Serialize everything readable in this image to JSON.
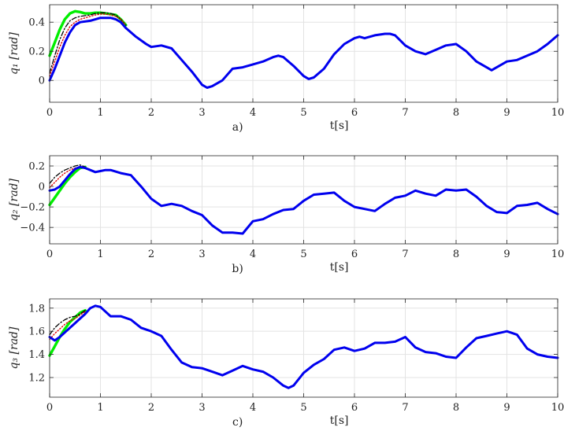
{
  "chart_data": [
    {
      "type": "line",
      "panel_label": "a)",
      "ylabel": "q₁ [rad]",
      "xlabel": "t[s]",
      "xlim": [
        0,
        10
      ],
      "ylim": [
        -0.15,
        0.52
      ],
      "xticks": [
        0,
        1,
        2,
        3,
        4,
        5,
        6,
        7,
        8,
        9,
        10
      ],
      "yticks": [
        0,
        0.2,
        0.4
      ],
      "grid": true,
      "series": [
        {
          "color": "#00ee00",
          "style": "solid",
          "width": 3.4,
          "x": [
            0,
            0.1,
            0.2,
            0.3,
            0.4,
            0.5,
            0.6,
            0.7,
            0.8,
            0.9,
            1.0,
            1.1,
            1.2,
            1.3,
            1.4,
            1.5
          ],
          "y": [
            0.17,
            0.26,
            0.35,
            0.42,
            0.46,
            0.475,
            0.47,
            0.46,
            0.46,
            0.465,
            0.465,
            0.46,
            0.455,
            0.45,
            0.42,
            0.38
          ]
        },
        {
          "color": "#000000",
          "style": "dashdot",
          "width": 1.3,
          "x": [
            0,
            0.1,
            0.2,
            0.3,
            0.4,
            0.5,
            0.6,
            0.7,
            0.8,
            0.9,
            1.0,
            1.1,
            1.2,
            1.3,
            1.4,
            1.5
          ],
          "y": [
            0.05,
            0.17,
            0.28,
            0.36,
            0.41,
            0.43,
            0.44,
            0.445,
            0.45,
            0.46,
            0.465,
            0.465,
            0.46,
            0.45,
            0.42,
            0.38
          ]
        },
        {
          "color": "#dd0000",
          "style": "dotted",
          "width": 1.4,
          "x": [
            0,
            0.1,
            0.2,
            0.3,
            0.4,
            0.5,
            0.6,
            0.7,
            0.8,
            0.9,
            1.0,
            1.1,
            1.2,
            1.3,
            1.4,
            1.5
          ],
          "y": [
            0.03,
            0.13,
            0.23,
            0.31,
            0.37,
            0.4,
            0.42,
            0.43,
            0.44,
            0.45,
            0.455,
            0.455,
            0.45,
            0.44,
            0.42,
            0.38
          ]
        },
        {
          "color": "#0000ee",
          "style": "solid",
          "width": 3.0,
          "x": [
            0,
            0.1,
            0.2,
            0.3,
            0.4,
            0.5,
            0.6,
            0.8,
            1.0,
            1.1,
            1.2,
            1.3,
            1.4,
            1.5,
            1.7,
            1.9,
            2.0,
            2.2,
            2.4,
            2.6,
            2.8,
            3.0,
            3.1,
            3.2,
            3.4,
            3.6,
            3.8,
            4.0,
            4.2,
            4.4,
            4.5,
            4.6,
            4.8,
            5.0,
            5.1,
            5.2,
            5.4,
            5.6,
            5.8,
            6.0,
            6.1,
            6.2,
            6.4,
            6.6,
            6.7,
            6.8,
            7.0,
            7.2,
            7.4,
            7.6,
            7.8,
            8.0,
            8.2,
            8.4,
            8.6,
            8.7,
            8.8,
            9.0,
            9.2,
            9.4,
            9.6,
            9.8,
            10.0
          ],
          "y": [
            0.0,
            0.08,
            0.17,
            0.26,
            0.33,
            0.38,
            0.4,
            0.41,
            0.43,
            0.43,
            0.43,
            0.42,
            0.4,
            0.36,
            0.3,
            0.25,
            0.23,
            0.24,
            0.22,
            0.14,
            0.06,
            -0.03,
            -0.05,
            -0.04,
            0.0,
            0.08,
            0.09,
            0.11,
            0.13,
            0.16,
            0.17,
            0.16,
            0.1,
            0.03,
            0.01,
            0.02,
            0.08,
            0.18,
            0.25,
            0.29,
            0.3,
            0.29,
            0.31,
            0.32,
            0.32,
            0.31,
            0.24,
            0.2,
            0.18,
            0.21,
            0.24,
            0.25,
            0.2,
            0.13,
            0.09,
            0.07,
            0.09,
            0.13,
            0.14,
            0.17,
            0.2,
            0.25,
            0.31
          ]
        }
      ]
    },
    {
      "type": "line",
      "panel_label": "b)",
      "ylabel": "q₂ [rad]",
      "xlabel": "t[s]",
      "xlim": [
        0,
        10
      ],
      "ylim": [
        -0.56,
        0.3
      ],
      "xticks": [
        0,
        1,
        2,
        3,
        4,
        5,
        6,
        7,
        8,
        9,
        10
      ],
      "yticks": [
        -0.4,
        -0.2,
        0,
        0.2
      ],
      "grid": true,
      "series": [
        {
          "color": "#00ee00",
          "style": "solid",
          "width": 3.4,
          "x": [
            0,
            0.1,
            0.2,
            0.3,
            0.4,
            0.5,
            0.6,
            0.7
          ],
          "y": [
            -0.18,
            -0.11,
            -0.04,
            0.03,
            0.09,
            0.14,
            0.18,
            0.19
          ]
        },
        {
          "color": "#000000",
          "style": "dashdot",
          "width": 1.3,
          "x": [
            0,
            0.1,
            0.2,
            0.3,
            0.4,
            0.5,
            0.6,
            0.7
          ],
          "y": [
            0.03,
            0.09,
            0.13,
            0.16,
            0.18,
            0.2,
            0.21,
            0.19
          ]
        },
        {
          "color": "#dd0000",
          "style": "dotted",
          "width": 1.4,
          "x": [
            0,
            0.1,
            0.2,
            0.3,
            0.4,
            0.5,
            0.6,
            0.7
          ],
          "y": [
            -0.01,
            0.04,
            0.09,
            0.13,
            0.16,
            0.18,
            0.19,
            0.19
          ]
        },
        {
          "color": "#0000ee",
          "style": "solid",
          "width": 3.0,
          "x": [
            0,
            0.1,
            0.2,
            0.3,
            0.4,
            0.5,
            0.6,
            0.7,
            0.8,
            0.9,
            1.0,
            1.1,
            1.2,
            1.4,
            1.6,
            1.8,
            2.0,
            2.2,
            2.4,
            2.6,
            2.8,
            3.0,
            3.2,
            3.4,
            3.6,
            3.8,
            4.0,
            4.2,
            4.4,
            4.6,
            4.8,
            5.0,
            5.2,
            5.4,
            5.6,
            5.8,
            6.0,
            6.2,
            6.4,
            6.6,
            6.8,
            7.0,
            7.2,
            7.4,
            7.6,
            7.8,
            8.0,
            8.2,
            8.4,
            8.6,
            8.8,
            9.0,
            9.2,
            9.4,
            9.6,
            9.8,
            10.0
          ],
          "y": [
            -0.04,
            -0.03,
            0.0,
            0.06,
            0.12,
            0.17,
            0.19,
            0.18,
            0.16,
            0.14,
            0.15,
            0.16,
            0.16,
            0.13,
            0.11,
            0.0,
            -0.12,
            -0.19,
            -0.17,
            -0.19,
            -0.24,
            -0.28,
            -0.38,
            -0.45,
            -0.45,
            -0.46,
            -0.34,
            -0.32,
            -0.27,
            -0.23,
            -0.22,
            -0.14,
            -0.08,
            -0.07,
            -0.06,
            -0.14,
            -0.2,
            -0.22,
            -0.24,
            -0.17,
            -0.11,
            -0.09,
            -0.04,
            -0.07,
            -0.09,
            -0.03,
            -0.04,
            -0.03,
            -0.1,
            -0.19,
            -0.25,
            -0.26,
            -0.19,
            -0.18,
            -0.16,
            -0.22,
            -0.27
          ]
        }
      ]
    },
    {
      "type": "line",
      "panel_label": "c)",
      "ylabel": "q₃ [rad]",
      "xlabel": "t[s]",
      "xlim": [
        0,
        10
      ],
      "ylim": [
        1.03,
        1.88
      ],
      "xticks": [
        0,
        1,
        2,
        3,
        4,
        5,
        6,
        7,
        8,
        9,
        10
      ],
      "yticks": [
        1.2,
        1.4,
        1.6,
        1.8
      ],
      "grid": true,
      "series": [
        {
          "color": "#00ee00",
          "style": "solid",
          "width": 3.4,
          "x": [
            0,
            0.1,
            0.2,
            0.3,
            0.4,
            0.5,
            0.6,
            0.7
          ],
          "y": [
            1.39,
            1.47,
            1.55,
            1.62,
            1.68,
            1.72,
            1.76,
            1.78
          ]
        },
        {
          "color": "#000000",
          "style": "dashdot",
          "width": 1.3,
          "x": [
            0,
            0.1,
            0.2,
            0.3,
            0.4,
            0.5,
            0.6,
            0.7
          ],
          "y": [
            1.57,
            1.63,
            1.67,
            1.7,
            1.72,
            1.73,
            1.75,
            1.78
          ]
        },
        {
          "color": "#dd0000",
          "style": "dotted",
          "width": 1.4,
          "x": [
            0,
            0.1,
            0.2,
            0.3,
            0.4,
            0.5,
            0.6,
            0.7
          ],
          "y": [
            1.53,
            1.58,
            1.62,
            1.66,
            1.69,
            1.71,
            1.74,
            1.77
          ]
        },
        {
          "color": "#0000ee",
          "style": "solid",
          "width": 3.0,
          "x": [
            0,
            0.1,
            0.2,
            0.3,
            0.4,
            0.5,
            0.6,
            0.7,
            0.8,
            0.9,
            1.0,
            1.1,
            1.2,
            1.4,
            1.6,
            1.8,
            2.0,
            2.2,
            2.4,
            2.6,
            2.8,
            3.0,
            3.2,
            3.4,
            3.6,
            3.8,
            4.0,
            4.2,
            4.4,
            4.6,
            4.7,
            4.8,
            5.0,
            5.2,
            5.4,
            5.6,
            5.8,
            6.0,
            6.2,
            6.4,
            6.6,
            6.8,
            7.0,
            7.2,
            7.4,
            7.6,
            7.8,
            8.0,
            8.2,
            8.4,
            8.6,
            8.8,
            9.0,
            9.2,
            9.4,
            9.6,
            9.8,
            10.0
          ],
          "y": [
            1.55,
            1.52,
            1.55,
            1.59,
            1.63,
            1.67,
            1.71,
            1.75,
            1.8,
            1.82,
            1.81,
            1.77,
            1.73,
            1.73,
            1.7,
            1.63,
            1.6,
            1.56,
            1.44,
            1.33,
            1.29,
            1.28,
            1.25,
            1.22,
            1.26,
            1.3,
            1.27,
            1.25,
            1.2,
            1.13,
            1.11,
            1.13,
            1.24,
            1.31,
            1.36,
            1.44,
            1.46,
            1.43,
            1.45,
            1.5,
            1.5,
            1.51,
            1.55,
            1.46,
            1.42,
            1.41,
            1.38,
            1.37,
            1.46,
            1.54,
            1.56,
            1.58,
            1.6,
            1.57,
            1.45,
            1.4,
            1.38,
            1.37
          ]
        }
      ]
    }
  ]
}
